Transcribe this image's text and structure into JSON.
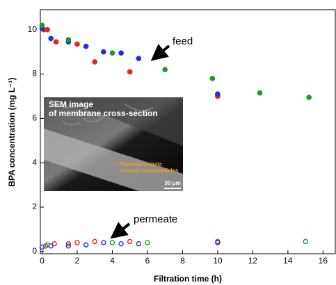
{
  "chart_data": {
    "type": "scatter",
    "x_label": "Filtration time (h)",
    "y_label": "BPA concentration (mg L⁻¹)",
    "xlim": [
      -0.1,
      16.7
    ],
    "ylim": [
      -0.1,
      10.9
    ],
    "xticks": [
      0,
      2,
      4,
      6,
      8,
      10,
      12,
      14,
      16
    ],
    "yticks": [
      0,
      2,
      4,
      6,
      8,
      10
    ],
    "annotations": [
      "feed",
      "permeate"
    ],
    "inset": {
      "title": [
        "SEM image",
        "of membrane cross-section"
      ],
      "label": [
        "Thermocatalytic",
        "ceramic nanoparticles"
      ],
      "scale_bar": "30 μm"
    },
    "series": [
      {
        "color": "#e8221c",
        "filled": true,
        "x": [
          0.1,
          0.3,
          0.8,
          2,
          3,
          5,
          10
        ],
        "values": [
          10.0,
          10.0,
          9.45,
          9.35,
          8.55,
          8.1,
          7.0
        ]
      },
      {
        "color": "#1f2fe0",
        "filled": true,
        "x": [
          0,
          0.5,
          1.5,
          2.5,
          3.5,
          4.5,
          5.5,
          10
        ],
        "values": [
          10.05,
          9.6,
          9.45,
          9.25,
          9.0,
          8.95,
          8.7,
          7.1
        ]
      },
      {
        "color": "#1f9a2a",
        "filled": true,
        "x": [
          0,
          1.5,
          4,
          7,
          9.7,
          12.4,
          15.2
        ],
        "values": [
          10.2,
          9.55,
          8.95,
          8.2,
          7.8,
          7.15,
          6.95
        ]
      },
      {
        "color": "#e8221c",
        "filled": false,
        "x": [
          0.2,
          0.7,
          1.5,
          2,
          3,
          5,
          10
        ],
        "values": [
          0.25,
          0.35,
          0.35,
          0.4,
          0.45,
          0.45,
          0.45
        ]
      },
      {
        "color": "#1f2fe0",
        "filled": false,
        "x": [
          0,
          0.5,
          1.5,
          2.5,
          3.5,
          4.5,
          5.5,
          10
        ],
        "values": [
          0.2,
          0.25,
          0.25,
          0.3,
          0.4,
          0.35,
          0.35,
          0.4
        ]
      },
      {
        "color": "#1f9a2a",
        "filled": false,
        "x": [
          0.3,
          4,
          6,
          15
        ],
        "values": [
          0.3,
          0.4,
          0.4,
          0.45
        ]
      }
    ]
  }
}
